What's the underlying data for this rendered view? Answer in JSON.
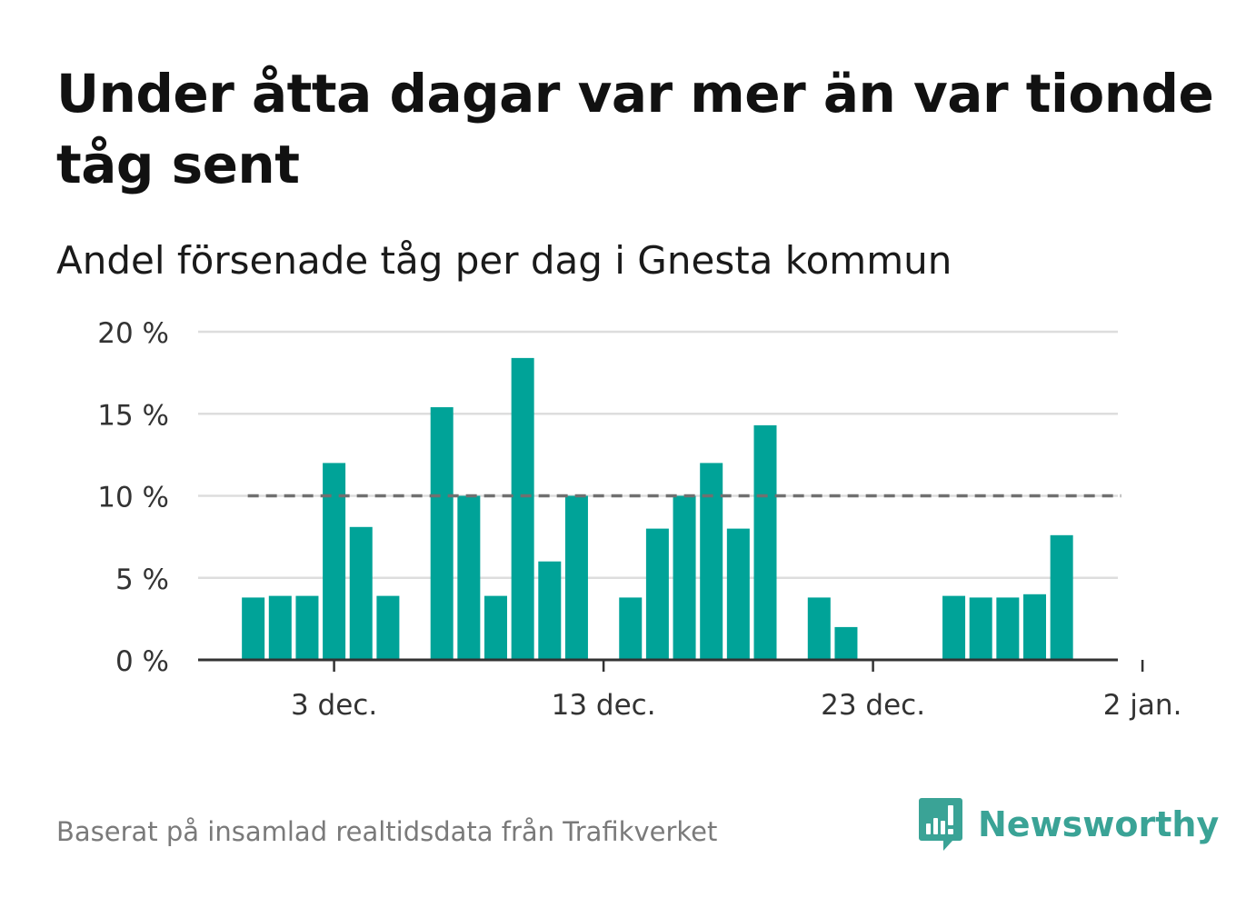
{
  "title": "Under åtta dagar var mer än var tionde tåg sent",
  "subtitle": "Andel försenade tåg per dag i Gnesta kommun",
  "footer": "Baserat på insamlad realtidsdata från Trafikverket",
  "brand": {
    "name": "Newsworthy",
    "icon": "newsworthy-logo-icon",
    "color": "#3aa396"
  },
  "colors": {
    "bar": "#00a398",
    "reference_line": "#707070",
    "grid": "#dddddd",
    "axis": "#333333"
  },
  "chart_data": {
    "type": "bar",
    "title": "Under åtta dagar var mer än var tionde tåg sent",
    "subtitle": "Andel försenade tåg per dag i Gnesta kommun",
    "xlabel": "",
    "ylabel": "",
    "x_unit": "day",
    "x_start": "2023-11-29",
    "x_end": "2024-01-02",
    "x_ticks": [
      {
        "date": "2023-12-03",
        "label": "3 dec."
      },
      {
        "date": "2023-12-13",
        "label": "13 dec."
      },
      {
        "date": "2023-12-23",
        "label": "23 dec."
      },
      {
        "date": "2024-01-02",
        "label": "2 jan."
      }
    ],
    "y_ticks": [
      0,
      5,
      10,
      15,
      20
    ],
    "y_tick_labels": [
      "0 %",
      "5 %",
      "10 %",
      "15 %",
      "20 %"
    ],
    "ylim": [
      0,
      20
    ],
    "grid": true,
    "reference_line": {
      "value": 10,
      "style": "dashed",
      "from": "2023-11-30",
      "to": "2024-01-01"
    },
    "points": [
      {
        "date": "2023-11-30",
        "value": 3.8
      },
      {
        "date": "2023-12-01",
        "value": 3.9
      },
      {
        "date": "2023-12-02",
        "value": 3.9
      },
      {
        "date": "2023-12-03",
        "value": 12.0
      },
      {
        "date": "2023-12-04",
        "value": 8.1
      },
      {
        "date": "2023-12-05",
        "value": 3.9
      },
      {
        "date": "2023-12-07",
        "value": 15.4
      },
      {
        "date": "2023-12-08",
        "value": 10.0
      },
      {
        "date": "2023-12-09",
        "value": 3.9
      },
      {
        "date": "2023-12-10",
        "value": 18.4
      },
      {
        "date": "2023-12-11",
        "value": 6.0
      },
      {
        "date": "2023-12-12",
        "value": 10.0
      },
      {
        "date": "2023-12-14",
        "value": 3.8
      },
      {
        "date": "2023-12-15",
        "value": 8.0
      },
      {
        "date": "2023-12-16",
        "value": 10.0
      },
      {
        "date": "2023-12-17",
        "value": 12.0
      },
      {
        "date": "2023-12-18",
        "value": 8.0
      },
      {
        "date": "2023-12-19",
        "value": 14.3
      },
      {
        "date": "2023-12-21",
        "value": 3.8
      },
      {
        "date": "2023-12-22",
        "value": 2.0
      },
      {
        "date": "2023-12-26",
        "value": 3.9
      },
      {
        "date": "2023-12-27",
        "value": 3.8
      },
      {
        "date": "2023-12-28",
        "value": 3.8
      },
      {
        "date": "2023-12-29",
        "value": 4.0
      },
      {
        "date": "2023-12-30",
        "value": 7.6
      }
    ]
  }
}
